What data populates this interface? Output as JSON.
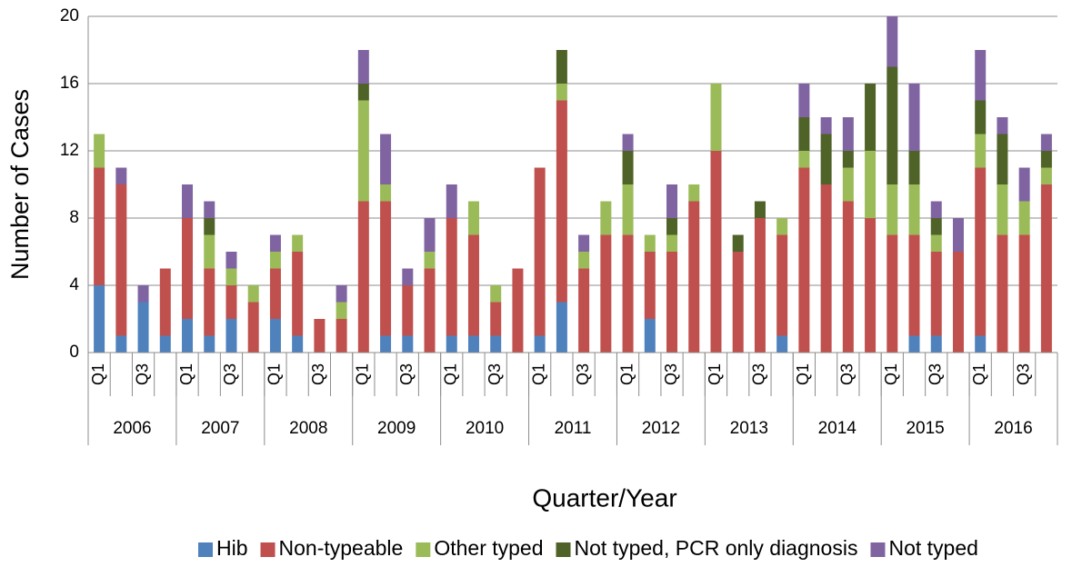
{
  "chart_data": {
    "type": "stacked_bar",
    "y_label": "Number of Cases",
    "x_label": "Quarter/Year",
    "categories": [
      "Q1",
      null,
      "Q3",
      null,
      "Q1",
      null,
      "Q3",
      null,
      "Q1",
      null,
      "Q3",
      null,
      "Q1",
      null,
      "Q3",
      null,
      "Q1",
      null,
      "Q3",
      null,
      "Q1",
      null,
      "Q3",
      null,
      "Q1",
      null,
      "Q3",
      null,
      "Q1",
      null,
      "Q3",
      null,
      "Q1",
      null,
      "Q3",
      null,
      "Q1",
      null,
      "Q3",
      null,
      "Q1",
      null,
      "Q3",
      null
    ],
    "groups": [
      "2006",
      "2007",
      "2008",
      "2009",
      "2010",
      "2011",
      "2012",
      "2013",
      "2014",
      "2015",
      "2016"
    ],
    "series": [
      {
        "name": "Hib",
        "color": "#4f81bd",
        "values": [
          4,
          1,
          3,
          1,
          2,
          1,
          2,
          0,
          2,
          1,
          0,
          0,
          0,
          1,
          1,
          0,
          1,
          1,
          1,
          0,
          1,
          3,
          0,
          0,
          0,
          2,
          0,
          0,
          0,
          0,
          0,
          1,
          0,
          0,
          0,
          0,
          0,
          1,
          1,
          0,
          1,
          0,
          0,
          0
        ]
      },
      {
        "name": "Non-typeable",
        "color": "#c0504d",
        "values": [
          7,
          9,
          0,
          4,
          6,
          4,
          2,
          3,
          3,
          5,
          2,
          2,
          9,
          8,
          3,
          5,
          7,
          6,
          2,
          5,
          10,
          12,
          5,
          7,
          7,
          4,
          6,
          9,
          12,
          6,
          8,
          6,
          11,
          10,
          9,
          8,
          7,
          6,
          5,
          6,
          10,
          7,
          7,
          10
        ]
      },
      {
        "name": "Other typed",
        "color": "#9bbb59",
        "values": [
          2,
          0,
          0,
          0,
          0,
          2,
          1,
          1,
          1,
          1,
          0,
          1,
          6,
          1,
          0,
          1,
          0,
          2,
          1,
          0,
          0,
          1,
          1,
          2,
          3,
          1,
          1,
          1,
          4,
          0,
          0,
          1,
          1,
          0,
          2,
          4,
          3,
          3,
          1,
          0,
          2,
          3,
          2,
          1
        ]
      },
      {
        "name": "Not typed, PCR only diagnosis",
        "color": "#4f6228",
        "values": [
          0,
          0,
          0,
          0,
          0,
          1,
          0,
          0,
          0,
          0,
          0,
          0,
          1,
          0,
          0,
          0,
          0,
          0,
          0,
          0,
          0,
          2,
          0,
          0,
          2,
          0,
          1,
          0,
          0,
          1,
          1,
          0,
          2,
          3,
          1,
          4,
          7,
          2,
          1,
          0,
          2,
          3,
          0,
          1
        ]
      },
      {
        "name": "Not typed",
        "color": "#8064a2",
        "values": [
          0,
          1,
          1,
          0,
          2,
          1,
          1,
          0,
          1,
          0,
          0,
          1,
          2,
          3,
          1,
          2,
          2,
          0,
          0,
          0,
          0,
          0,
          1,
          0,
          1,
          0,
          2,
          0,
          0,
          0,
          0,
          0,
          2,
          1,
          2,
          0,
          3,
          4,
          1,
          2,
          3,
          1,
          2,
          1
        ]
      }
    ],
    "ylim": [
      0,
      20
    ],
    "yticks": [
      0,
      4,
      8,
      12,
      16,
      20
    ],
    "grid": true,
    "legend": "bottom"
  }
}
